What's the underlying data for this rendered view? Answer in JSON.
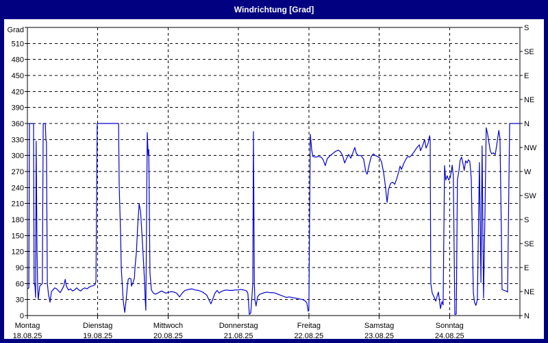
{
  "window": {
    "title": "Windrichtung [Grad]"
  },
  "colors": {
    "frame": "#000080",
    "title_text": "#FFFFFF",
    "panel_bg": "#FFFFFF",
    "grid": "#000000",
    "axis": "#000000",
    "series_line": "#0000CC"
  },
  "chart_data": {
    "type": "line",
    "title": "Windrichtung [Grad]",
    "grid": true,
    "legend": "none",
    "y_axis": {
      "title": "Grad",
      "min": 0,
      "max": 540,
      "tick_step": 30,
      "tick_labels": [
        "0",
        "30",
        "60",
        "90",
        "120",
        "150",
        "180",
        "210",
        "240",
        "270",
        "300",
        "330",
        "360",
        "390",
        "420",
        "450",
        "480",
        "510"
      ]
    },
    "y2_axis": {
      "tick_step": 45,
      "tick_labels_bottom_to_top": [
        "N",
        "NE",
        "E",
        "SE",
        "S",
        "SW",
        "W",
        "NW",
        "N",
        "NE",
        "E",
        "SE",
        "S"
      ]
    },
    "x_axis": {
      "unit": "hours",
      "min": 0,
      "max": 168,
      "day_tick_interval_hours": 24,
      "days": [
        {
          "name": "Montag",
          "date": "18.08.25"
        },
        {
          "name": "Dienstag",
          "date": "19.08.25"
        },
        {
          "name": "Mittwoch",
          "date": "20.08.25"
        },
        {
          "name": "Donnerstag",
          "date": "21.08.25"
        },
        {
          "name": "Freitag",
          "date": "22.08.25"
        },
        {
          "name": "Samstag",
          "date": "23.08.25"
        },
        {
          "name": "Sonntag",
          "date": "24.08.25"
        }
      ]
    },
    "series": [
      {
        "name": "Windrichtung",
        "color": "#0000CC",
        "points": [
          [
            0,
            50
          ],
          [
            0.5,
            52
          ],
          [
            0.7,
            360
          ],
          [
            2.1,
            360
          ],
          [
            2.3,
            62
          ],
          [
            2.6,
            55
          ],
          [
            2.8,
            34
          ],
          [
            3.0,
            327
          ],
          [
            3.3,
            120
          ],
          [
            3.5,
            55
          ],
          [
            3.7,
            30
          ],
          [
            4.2,
            55
          ],
          [
            4.7,
            58
          ],
          [
            5.1,
            60
          ],
          [
            5.4,
            360
          ],
          [
            6.1,
            360
          ],
          [
            6.3,
            330
          ],
          [
            6.5,
            325
          ],
          [
            6.8,
            60
          ],
          [
            7.2,
            40
          ],
          [
            7.7,
            25
          ],
          [
            8.2,
            45
          ],
          [
            8.6,
            47
          ],
          [
            9.3,
            52
          ],
          [
            10.0,
            50
          ],
          [
            10.5,
            47
          ],
          [
            11.2,
            43
          ],
          [
            11.7,
            48
          ],
          [
            12.4,
            55
          ],
          [
            12.9,
            68
          ],
          [
            13.3,
            55
          ],
          [
            14.0,
            48
          ],
          [
            14.7,
            50
          ],
          [
            15.4,
            46
          ],
          [
            16.1,
            48
          ],
          [
            16.8,
            52
          ],
          [
            17.5,
            48
          ],
          [
            18.2,
            46
          ],
          [
            18.9,
            50
          ],
          [
            19.6,
            52
          ],
          [
            20.3,
            50
          ],
          [
            21.0,
            53
          ],
          [
            21.7,
            55
          ],
          [
            22.4,
            56
          ],
          [
            23.1,
            58
          ],
          [
            23.4,
            65
          ],
          [
            23.8,
            360
          ],
          [
            31.1,
            360
          ],
          [
            31.3,
            245
          ],
          [
            31.8,
            150
          ],
          [
            32.0,
            90
          ],
          [
            32.5,
            45
          ],
          [
            32.7,
            28
          ],
          [
            33.2,
            6
          ],
          [
            33.7,
            30
          ],
          [
            34.1,
            55
          ],
          [
            34.4,
            68
          ],
          [
            34.8,
            70
          ],
          [
            35.3,
            69
          ],
          [
            35.5,
            55
          ],
          [
            36.0,
            62
          ],
          [
            36.5,
            70
          ],
          [
            36.7,
            90
          ],
          [
            37.2,
            120
          ],
          [
            37.6,
            165
          ],
          [
            38.1,
            210
          ],
          [
            38.6,
            195
          ],
          [
            39.0,
            160
          ],
          [
            39.5,
            110
          ],
          [
            40.0,
            60
          ],
          [
            40.2,
            30
          ],
          [
            40.4,
            10
          ],
          [
            40.9,
            343
          ],
          [
            41.2,
            300
          ],
          [
            41.4,
            311
          ],
          [
            41.8,
            80
          ],
          [
            42.3,
            48
          ],
          [
            43.0,
            42
          ],
          [
            43.7,
            40
          ],
          [
            44.4,
            42
          ],
          [
            45.1,
            44
          ],
          [
            45.8,
            46
          ],
          [
            46.5,
            44
          ],
          [
            47.2,
            42
          ],
          [
            47.9,
            43
          ],
          [
            48.5,
            44
          ],
          [
            49.1,
            45
          ],
          [
            50.0,
            44
          ],
          [
            50.9,
            42
          ],
          [
            51.9,
            35
          ],
          [
            52.8,
            42
          ],
          [
            53.7,
            47
          ],
          [
            54.9,
            49
          ],
          [
            56.1,
            50
          ],
          [
            57.2,
            48
          ],
          [
            58.4,
            47
          ],
          [
            59.4,
            45
          ],
          [
            60.3,
            42
          ],
          [
            61.2,
            38
          ],
          [
            61.9,
            30
          ],
          [
            62.6,
            22
          ],
          [
            63.3,
            32
          ],
          [
            64.0,
            42
          ],
          [
            64.7,
            47
          ],
          [
            65.4,
            42
          ],
          [
            66.1,
            45
          ],
          [
            67.1,
            47
          ],
          [
            68.0,
            48
          ],
          [
            68.9,
            47
          ],
          [
            69.9,
            47
          ],
          [
            70.8,
            48
          ],
          [
            71.7,
            48
          ],
          [
            72.9,
            49
          ],
          [
            73.8,
            48
          ],
          [
            74.8,
            46
          ],
          [
            75.2,
            42
          ],
          [
            75.5,
            20
          ],
          [
            75.7,
            2
          ],
          [
            76.2,
            5
          ],
          [
            76.9,
            60
          ],
          [
            77.1,
            345
          ],
          [
            77.4,
            60
          ],
          [
            77.6,
            30
          ],
          [
            78.0,
            18
          ],
          [
            78.5,
            35
          ],
          [
            79.2,
            40
          ],
          [
            79.9,
            41
          ],
          [
            80.8,
            43
          ],
          [
            81.8,
            44
          ],
          [
            82.7,
            43
          ],
          [
            83.7,
            43
          ],
          [
            84.6,
            42
          ],
          [
            85.5,
            40
          ],
          [
            86.4,
            38
          ],
          [
            87.4,
            36
          ],
          [
            88.3,
            34
          ],
          [
            89.3,
            35
          ],
          [
            90.2,
            34
          ],
          [
            91.1,
            33
          ],
          [
            92.1,
            32
          ],
          [
            93.0,
            31
          ],
          [
            93.9,
            30
          ],
          [
            94.6,
            28
          ],
          [
            95.3,
            24
          ],
          [
            95.8,
            8
          ],
          [
            96.0,
            10
          ],
          [
            96.5,
            340
          ],
          [
            97.0,
            310
          ],
          [
            97.4,
            298
          ],
          [
            98.4,
            297
          ],
          [
            99.3,
            298
          ],
          [
            100.2,
            297
          ],
          [
            100.9,
            292
          ],
          [
            101.6,
            281
          ],
          [
            102.3,
            294
          ],
          [
            103.3,
            300
          ],
          [
            104.2,
            304
          ],
          [
            105.2,
            308
          ],
          [
            106.1,
            310
          ],
          [
            106.8,
            307
          ],
          [
            107.5,
            300
          ],
          [
            108.2,
            286
          ],
          [
            108.9,
            295
          ],
          [
            109.6,
            302
          ],
          [
            110.3,
            295
          ],
          [
            111.0,
            305
          ],
          [
            111.7,
            315
          ],
          [
            112.2,
            304
          ],
          [
            112.9,
            300
          ],
          [
            113.8,
            300
          ],
          [
            114.7,
            293
          ],
          [
            115.4,
            270
          ],
          [
            115.9,
            265
          ],
          [
            116.6,
            283
          ],
          [
            117.3,
            298
          ],
          [
            118.0,
            303
          ],
          [
            118.7,
            300
          ],
          [
            119.4,
            298
          ],
          [
            120.1,
            296
          ],
          [
            120.8,
            288
          ],
          [
            121.5,
            268
          ],
          [
            122.0,
            248
          ],
          [
            122.7,
            212
          ],
          [
            123.2,
            237
          ],
          [
            123.9,
            248
          ],
          [
            124.6,
            250
          ],
          [
            125.3,
            246
          ],
          [
            126.0,
            257
          ],
          [
            126.7,
            270
          ],
          [
            127.1,
            280
          ],
          [
            127.6,
            274
          ],
          [
            128.3,
            284
          ],
          [
            129.0,
            292
          ],
          [
            129.7,
            298
          ],
          [
            130.4,
            297
          ],
          [
            131.1,
            301
          ],
          [
            131.8,
            306
          ],
          [
            132.5,
            312
          ],
          [
            133.2,
            317
          ],
          [
            133.7,
            320
          ],
          [
            134.1,
            309
          ],
          [
            134.8,
            318
          ],
          [
            135.5,
            330
          ],
          [
            136.0,
            314
          ],
          [
            136.7,
            323
          ],
          [
            137.2,
            337
          ],
          [
            137.4,
            330
          ],
          [
            137.6,
            60
          ],
          [
            138.1,
            42
          ],
          [
            138.6,
            36
          ],
          [
            139.3,
            27
          ],
          [
            139.8,
            37
          ],
          [
            140.2,
            44
          ],
          [
            140.7,
            22
          ],
          [
            140.9,
            13
          ],
          [
            141.4,
            26
          ],
          [
            141.8,
            20
          ],
          [
            142.3,
            281
          ],
          [
            142.7,
            254
          ],
          [
            143.2,
            262
          ],
          [
            143.7,
            254
          ],
          [
            144.2,
            258
          ],
          [
            144.6,
            270
          ],
          [
            144.9,
            282
          ],
          [
            145.1,
            271
          ],
          [
            145.3,
            262
          ],
          [
            145.8,
            2
          ],
          [
            146.3,
            3
          ],
          [
            146.7,
            255
          ],
          [
            147.2,
            271
          ],
          [
            147.6,
            291
          ],
          [
            148.1,
            297
          ],
          [
            148.6,
            284
          ],
          [
            149.0,
            272
          ],
          [
            149.5,
            290
          ],
          [
            150.0,
            286
          ],
          [
            150.4,
            292
          ],
          [
            150.9,
            289
          ],
          [
            151.4,
            257
          ],
          [
            152.1,
            43
          ],
          [
            152.5,
            25
          ],
          [
            153.0,
            19
          ],
          [
            153.5,
            30
          ],
          [
            154.2,
            287
          ],
          [
            154.7,
            62
          ],
          [
            155.1,
            318
          ],
          [
            155.6,
            33
          ],
          [
            156.1,
            200
          ],
          [
            156.5,
            352
          ],
          [
            157.0,
            340
          ],
          [
            157.5,
            322
          ],
          [
            157.9,
            308
          ],
          [
            158.4,
            303
          ],
          [
            158.9,
            305
          ],
          [
            159.6,
            302
          ],
          [
            160.1,
            320
          ],
          [
            160.8,
            347
          ],
          [
            161.2,
            332
          ],
          [
            161.7,
            152
          ],
          [
            161.9,
            49
          ],
          [
            162.6,
            47
          ],
          [
            163.3,
            46
          ],
          [
            163.8,
            44
          ],
          [
            164.5,
            360
          ],
          [
            168,
            360
          ]
        ]
      }
    ]
  }
}
